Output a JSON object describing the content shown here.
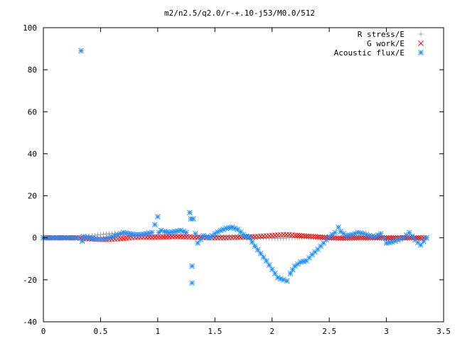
{
  "chart_data": {
    "type": "scatter",
    "title": "m2/n2.5/q2.0/r-+.10-j53/M0.0/512",
    "xlabel": "",
    "ylabel": "",
    "xlim": [
      0,
      3.5
    ],
    "ylim": [
      -40,
      100
    ],
    "x_ticks": [
      "0",
      "0.5",
      "1",
      "1.5",
      "2",
      "2.5",
      "3",
      "3.5"
    ],
    "y_ticks": [
      "100",
      "80",
      "60",
      "40",
      "20",
      "0",
      "-20",
      "-40"
    ],
    "grid": false,
    "legend_position": "top-right",
    "series": [
      {
        "name": "R stress/E",
        "marker": "plus",
        "color": "#a0a0a0",
        "x": [
          0.0,
          0.1,
          0.2,
          0.3,
          0.35,
          0.4,
          0.45,
          0.5,
          0.55,
          0.6,
          0.65,
          0.7,
          0.75,
          0.8,
          0.85,
          0.9,
          0.95,
          1.0,
          1.05,
          1.1,
          1.15,
          1.2,
          1.25,
          1.3,
          1.35,
          1.4,
          1.45,
          1.5,
          1.55,
          1.6,
          1.65,
          1.7,
          1.75,
          1.8,
          1.85,
          1.9,
          1.95,
          2.0,
          2.05,
          2.1,
          2.15,
          2.2,
          2.3,
          2.4,
          2.5,
          2.6,
          2.7,
          2.8,
          2.9,
          3.0,
          3.1,
          3.2,
          3.3,
          3.35
        ],
        "y": [
          0,
          0,
          0,
          0,
          0.5,
          0.8,
          1.2,
          1.5,
          1.8,
          2.0,
          1.8,
          1.5,
          1.2,
          1.0,
          0.8,
          0.7,
          0.6,
          0.5,
          0.5,
          0.6,
          0.6,
          0.7,
          0.8,
          0.6,
          0.5,
          0.4,
          0.4,
          0.5,
          0.5,
          0.6,
          0.6,
          0.4,
          0.3,
          0.2,
          0.2,
          0.1,
          0.0,
          -0.2,
          -0.3,
          -0.2,
          0.0,
          0.1,
          0.2,
          0.1,
          0.0,
          -0.1,
          0.0,
          0.0,
          0.0,
          0.0,
          0.0,
          0.0,
          0.0,
          0.0
        ]
      },
      {
        "name": "G work/E",
        "marker": "cross",
        "color": "#ff0000",
        "x": [
          0.0,
          0.1,
          0.2,
          0.3,
          0.35,
          0.4,
          0.45,
          0.5,
          0.55,
          0.6,
          0.65,
          0.7,
          0.75,
          0.8,
          0.85,
          0.9,
          0.95,
          1.0,
          1.05,
          1.1,
          1.15,
          1.2,
          1.25,
          1.3,
          1.35,
          1.4,
          1.45,
          1.5,
          1.55,
          1.6,
          1.65,
          1.7,
          1.75,
          1.8,
          1.85,
          1.9,
          1.95,
          2.0,
          2.05,
          2.1,
          2.15,
          2.2,
          2.3,
          2.4,
          2.5,
          2.6,
          2.7,
          2.8,
          2.9,
          3.0,
          3.1,
          3.2,
          3.3,
          3.35
        ],
        "y": [
          0,
          0,
          0,
          0,
          -0.3,
          -0.5,
          -0.7,
          -0.8,
          -0.8,
          -0.7,
          -0.5,
          -0.3,
          0.0,
          0.2,
          0.3,
          0.3,
          0.2,
          0.3,
          0.4,
          0.5,
          0.6,
          0.5,
          0.4,
          0.3,
          0.2,
          0.1,
          0.0,
          0.0,
          0.0,
          0.0,
          0.1,
          0.2,
          0.3,
          0.4,
          0.5,
          0.7,
          0.9,
          1.1,
          1.3,
          1.5,
          1.5,
          1.2,
          0.8,
          0.4,
          0.0,
          -0.2,
          -0.1,
          0.0,
          0.0,
          0.0,
          0.0,
          0.0,
          0.0,
          0.0
        ]
      },
      {
        "name": "Acoustic flux/E",
        "marker": "star",
        "color": "#1f8fff",
        "x": [
          0.0,
          0.05,
          0.1,
          0.15,
          0.2,
          0.25,
          0.3,
          0.33,
          0.34,
          0.35,
          0.4,
          0.45,
          0.5,
          0.55,
          0.6,
          0.65,
          0.7,
          0.75,
          0.8,
          0.85,
          0.9,
          0.95,
          1.0,
          1.01,
          1.03,
          1.06,
          1.1,
          1.15,
          1.2,
          1.25,
          1.28,
          1.29,
          1.3,
          1.3,
          1.31,
          1.33,
          1.35,
          1.4,
          1.45,
          1.5,
          1.55,
          1.6,
          1.65,
          1.7,
          1.75,
          1.8,
          1.85,
          1.9,
          1.95,
          2.0,
          2.05,
          2.1,
          2.13,
          2.16,
          2.2,
          2.25,
          2.3,
          2.35,
          2.4,
          2.45,
          2.5,
          2.55,
          2.58,
          2.6,
          2.65,
          2.7,
          2.75,
          2.8,
          2.85,
          2.9,
          2.95,
          3.0,
          3.05,
          3.1,
          3.15,
          3.2,
          3.25,
          3.3,
          3.35
        ],
        "y": [
          0,
          0,
          0,
          0,
          0,
          0,
          0,
          89,
          -1.5,
          0.5,
          0.0,
          -0.5,
          -0.8,
          -0.5,
          0.5,
          1.5,
          2.5,
          2.0,
          1.5,
          1.5,
          2.0,
          2.5,
          10,
          2.5,
          3.5,
          3.0,
          2.5,
          3.0,
          3.5,
          2.5,
          12,
          9,
          -13.5,
          -21.5,
          9,
          2,
          -2.5,
          1.0,
          0.0,
          2.0,
          3.5,
          4.5,
          5.0,
          4.0,
          1.5,
          0.0,
          -4.0,
          -7.5,
          -11.0,
          -15.0,
          -19.0,
          -20.0,
          -20.5,
          -17.0,
          -13.5,
          -11.5,
          -11.0,
          -8.0,
          -5.5,
          -2.5,
          0.5,
          2.5,
          5.0,
          3.0,
          1.0,
          1.5,
          2.5,
          2.0,
          1.0,
          0.5,
          2.0,
          -2.5,
          -2.0,
          -1.0,
          0.0,
          2.5,
          -1.0,
          -3.5,
          0.0
        ]
      }
    ]
  }
}
